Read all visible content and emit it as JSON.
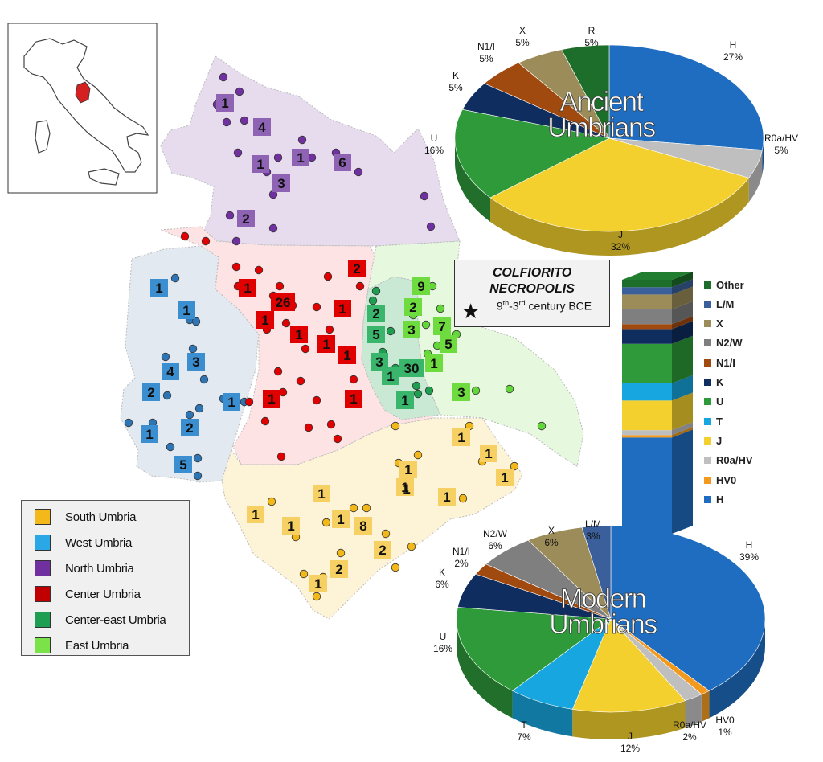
{
  "map": {
    "regions": [
      {
        "key": "north",
        "label": "North Umbria",
        "color": "#7030a0",
        "fill": "#e6dcee"
      },
      {
        "key": "west",
        "label": "West Umbria",
        "color": "#2e75b6",
        "fill": "#e3e9f1"
      },
      {
        "key": "center",
        "label": "Center Umbria",
        "color": "#e00000",
        "fill": "#fde3e3"
      },
      {
        "key": "centereast",
        "label": "Center-east Umbria",
        "color": "#1e9e50",
        "fill": "#c9e9d5"
      },
      {
        "key": "east",
        "label": "East Umbria",
        "color": "#63d63a",
        "fill": "#e6f8de"
      },
      {
        "key": "south",
        "label": "South Umbria",
        "color": "#f2b81a",
        "fill": "#fdf3d7"
      }
    ],
    "badges": {
      "north": [
        "1",
        "4",
        "1",
        "1",
        "6",
        "3",
        "2"
      ],
      "west": [
        "1",
        "1",
        "3",
        "4",
        "2",
        "1",
        "1",
        "2",
        "5"
      ],
      "center": [
        "2",
        "1",
        "26",
        "1",
        "1",
        "1",
        "1",
        "1",
        "1",
        "1"
      ],
      "centereast": [
        "2",
        "5",
        "3",
        "1",
        "30",
        "1"
      ],
      "east": [
        "9",
        "2",
        "3",
        "7",
        "5",
        "1",
        "3"
      ],
      "south": [
        "1",
        "1",
        "1",
        "1",
        "1",
        "1",
        "1",
        "1",
        "2",
        "1",
        "8",
        "1",
        "2",
        "1"
      ]
    },
    "plain_numbers": [
      "1"
    ]
  },
  "legend": {
    "items": [
      {
        "label": "South Umbria",
        "color": "#f5b81a"
      },
      {
        "label": "West Umbria",
        "color": "#2aa8e6"
      },
      {
        "label": "North Umbria",
        "color": "#7030a0"
      },
      {
        "label": "Center Umbria",
        "color": "#c00000"
      },
      {
        "label": "Center-east Umbria",
        "color": "#1e9e50"
      },
      {
        "label": "East Umbria",
        "color": "#7be24a"
      }
    ]
  },
  "necropolis": {
    "title_line1": "COLFIORITO",
    "title_line2": "NECROPOLIS",
    "century": "9",
    "sup1": "th",
    "dash": "-3",
    "sup2": "rd",
    "suffix": " century BCE",
    "icon": "star-icon"
  },
  "chart_data": [
    {
      "type": "pie",
      "title": "Ancient Umbrians",
      "slices": [
        {
          "label": "H",
          "pct": "27%",
          "value": 27,
          "color": "#1f6dc0"
        },
        {
          "label": "R0a/HV",
          "pct": "5%",
          "value": 5,
          "color": "#bfbfbf"
        },
        {
          "label": "J",
          "pct": "32%",
          "value": 32,
          "color": "#f3d02e"
        },
        {
          "label": "U",
          "pct": "16%",
          "value": 16,
          "color": "#2e9a3a"
        },
        {
          "label": "K",
          "pct": "5%",
          "value": 5,
          "color": "#0f2d5e"
        },
        {
          "label": "N1/I",
          "pct": "5%",
          "value": 5,
          "color": "#a04a10"
        },
        {
          "label": "X",
          "pct": "5%",
          "value": 5,
          "color": "#9c8c5a"
        },
        {
          "label": "R",
          "pct": "5%",
          "value": 5,
          "color": "#1d6e2a"
        }
      ]
    },
    {
      "type": "pie",
      "title": "Modern Umbrians",
      "slices": [
        {
          "label": "H",
          "pct": "39%",
          "value": 39,
          "color": "#1f6dc0"
        },
        {
          "label": "HV0",
          "pct": "1%",
          "value": 1,
          "color": "#f39a1e"
        },
        {
          "label": "R0a/HV",
          "pct": "2%",
          "value": 2,
          "color": "#bfbfbf"
        },
        {
          "label": "J",
          "pct": "12%",
          "value": 12,
          "color": "#f3d02e"
        },
        {
          "label": "T",
          "pct": "7%",
          "value": 7,
          "color": "#17a6e0"
        },
        {
          "label": "U",
          "pct": "16%",
          "value": 16,
          "color": "#2e9a3a"
        },
        {
          "label": "K",
          "pct": "6%",
          "value": 6,
          "color": "#0f2d5e"
        },
        {
          "label": "N1/I",
          "pct": "2%",
          "value": 2,
          "color": "#a04a10"
        },
        {
          "label": "N2/W",
          "pct": "6%",
          "value": 6,
          "color": "#7f7f7f"
        },
        {
          "label": "X",
          "pct": "6%",
          "value": 6,
          "color": "#9c8c5a"
        },
        {
          "label": "L/M",
          "pct": "3%",
          "value": 3,
          "color": "#3a5f9a"
        }
      ]
    },
    {
      "type": "bar",
      "stacked": true,
      "series": [
        {
          "name": "H",
          "value": 39,
          "color": "#1f6dc0"
        },
        {
          "name": "HV0",
          "value": 1,
          "color": "#f39a1e"
        },
        {
          "name": "R0a/HV",
          "value": 2,
          "color": "#bfbfbf"
        },
        {
          "name": "J",
          "value": 12,
          "color": "#f3d02e"
        },
        {
          "name": "T",
          "value": 7,
          "color": "#17a6e0"
        },
        {
          "name": "U",
          "value": 16,
          "color": "#2e9a3a"
        },
        {
          "name": "K",
          "value": 6,
          "color": "#0f2d5e"
        },
        {
          "name": "N1/I",
          "value": 2,
          "color": "#a04a10"
        },
        {
          "name": "N2/W",
          "value": 6,
          "color": "#7f7f7f"
        },
        {
          "name": "X",
          "value": 6,
          "color": "#9c8c5a"
        },
        {
          "name": "L/M",
          "value": 3,
          "color": "#3a5f9a"
        },
        {
          "name": "Other",
          "value": 3,
          "color": "#1d6e2a"
        }
      ],
      "legend_order": [
        "Other",
        "L/M",
        "X",
        "N2/W",
        "N1/I",
        "K",
        "U",
        "T",
        "J",
        "R0a/HV",
        "HV0",
        "H"
      ]
    }
  ]
}
